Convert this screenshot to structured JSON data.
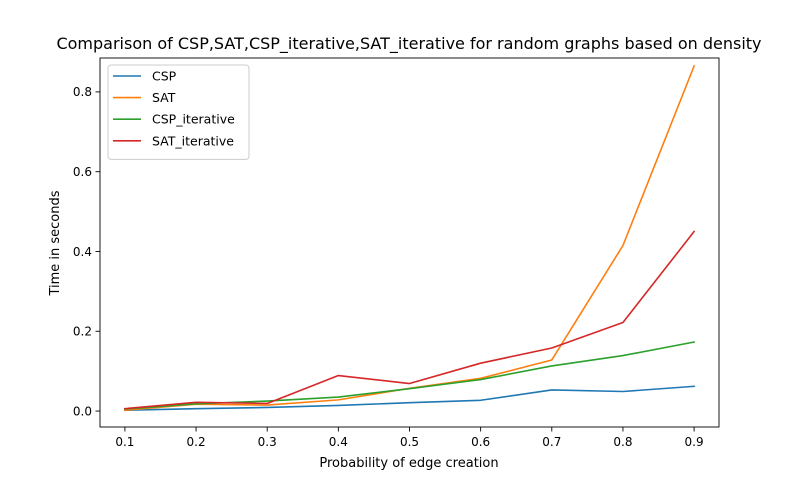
{
  "chart_data": {
    "type": "line",
    "title": "Comparison of CSP,SAT,CSP_iterative,SAT_iterative for random graphs based on density",
    "xlabel": "Probability of edge creation",
    "ylabel": "Time in seconds",
    "x": [
      0.1,
      0.2,
      0.3,
      0.4,
      0.5,
      0.6,
      0.7,
      0.8,
      0.9
    ],
    "x_ticks": [
      "0.1",
      "0.2",
      "0.3",
      "0.4",
      "0.5",
      "0.6",
      "0.7",
      "0.8",
      "0.9"
    ],
    "y_ticks": [
      "0.0",
      "0.2",
      "0.4",
      "0.6",
      "0.8"
    ],
    "xlim": [
      0.065,
      0.935
    ],
    "ylim": [
      -0.04,
      0.885
    ],
    "grid": false,
    "legend_position": "upper-left",
    "series": [
      {
        "name": "CSP",
        "color": "#1f77b4",
        "values": [
          0.002,
          0.006,
          0.009,
          0.014,
          0.021,
          0.027,
          0.053,
          0.049,
          0.062
        ]
      },
      {
        "name": "SAT",
        "color": "#ff7f0e",
        "values": [
          0.002,
          0.017,
          0.015,
          0.028,
          0.057,
          0.082,
          0.128,
          0.415,
          0.865
        ]
      },
      {
        "name": "CSP_iterative",
        "color": "#2ca02c",
        "values": [
          0.005,
          0.018,
          0.025,
          0.035,
          0.056,
          0.079,
          0.113,
          0.139,
          0.173
        ]
      },
      {
        "name": "SAT_iterative",
        "color": "#d62728",
        "values": [
          0.006,
          0.022,
          0.019,
          0.089,
          0.069,
          0.12,
          0.158,
          0.222,
          0.45
        ]
      }
    ]
  }
}
